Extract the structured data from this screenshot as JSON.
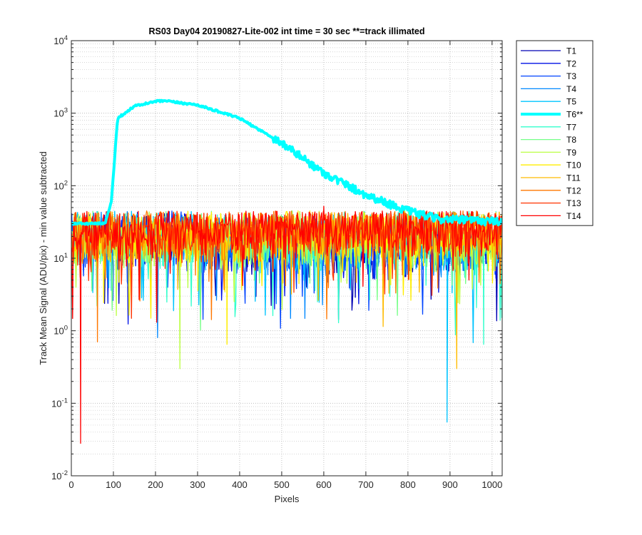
{
  "chart_data": {
    "type": "line",
    "title": "RS03 Day04 20190827-Lite-002 int time = 30 sec   **=track illimated",
    "xlabel": "Pixels",
    "ylabel": "Track Mean Signal (ADU/pix) - min value subtracted",
    "xscale": "linear",
    "yscale": "log",
    "xlim": [
      0,
      1024
    ],
    "ylim": [
      0.01,
      10000
    ],
    "x_ticks": [
      0,
      100,
      200,
      300,
      400,
      500,
      600,
      700,
      800,
      900,
      1000
    ],
    "x_tick_labels": [
      "0",
      "100",
      "200",
      "300",
      "400",
      "500",
      "600",
      "700",
      "800",
      "900",
      "1000"
    ],
    "y_ticks": [
      {
        "value": 0.01,
        "base": "10",
        "exp": "-2"
      },
      {
        "value": 0.1,
        "base": "10",
        "exp": "-1"
      },
      {
        "value": 1,
        "base": "10",
        "exp": "0"
      },
      {
        "value": 10,
        "base": "10",
        "exp": "1"
      },
      {
        "value": 100,
        "base": "10",
        "exp": "2"
      },
      {
        "value": 1000,
        "base": "10",
        "exp": "3"
      },
      {
        "value": 10000,
        "base": "10",
        "exp": "4"
      }
    ],
    "grid": true,
    "legend_position": "outside-right-top",
    "illuminated_track": {
      "name": "T6**",
      "color": "#00ffff",
      "profile": [
        [
          80,
          30
        ],
        [
          95,
          60
        ],
        [
          110,
          850
        ],
        [
          150,
          1250
        ],
        [
          200,
          1450
        ],
        [
          220,
          1480
        ],
        [
          300,
          1300
        ],
        [
          400,
          850
        ],
        [
          500,
          390
        ],
        [
          600,
          150
        ],
        [
          700,
          75
        ],
        [
          800,
          45
        ],
        [
          870,
          35
        ],
        [
          1024,
          32
        ]
      ]
    },
    "noise_tracks_baseline": 18,
    "notable_dips": [
      {
        "series": "T14",
        "x": 22,
        "y": 0.028
      },
      {
        "series": "T5",
        "x": 893,
        "y": 0.055
      },
      {
        "series": "T9",
        "x": 258,
        "y": 0.3
      },
      {
        "series": "T11",
        "x": 916,
        "y": 0.3
      },
      {
        "series": "T10",
        "x": 370,
        "y": 0.65
      },
      {
        "series": "T12",
        "x": 62,
        "y": 0.7
      },
      {
        "series": "T7",
        "x": 980,
        "y": 0.65
      }
    ],
    "notable_peaks": [
      {
        "series": "T14",
        "x": 600,
        "y": 52
      }
    ],
    "series": [
      {
        "name": "T1",
        "color": "#0000b3",
        "width": 1.3
      },
      {
        "name": "T2",
        "color": "#0011e6",
        "width": 1.3
      },
      {
        "name": "T3",
        "color": "#0044ff",
        "width": 1.3
      },
      {
        "name": "T4",
        "color": "#0088ff",
        "width": 1.3
      },
      {
        "name": "T5",
        "color": "#00c4ff",
        "width": 1.3
      },
      {
        "name": "T6**",
        "color": "#00ffff",
        "width": 4
      },
      {
        "name": "T7",
        "color": "#33ffcc",
        "width": 1.3
      },
      {
        "name": "T8",
        "color": "#77ff88",
        "width": 1.3
      },
      {
        "name": "T9",
        "color": "#bbff44",
        "width": 1.3
      },
      {
        "name": "T10",
        "color": "#ffee00",
        "width": 1.3
      },
      {
        "name": "T11",
        "color": "#ffbb00",
        "width": 1.3
      },
      {
        "name": "T12",
        "color": "#ff7700",
        "width": 1.3
      },
      {
        "name": "T13",
        "color": "#ff3300",
        "width": 1.3
      },
      {
        "name": "T14",
        "color": "#ff0000",
        "width": 1.3
      }
    ]
  }
}
